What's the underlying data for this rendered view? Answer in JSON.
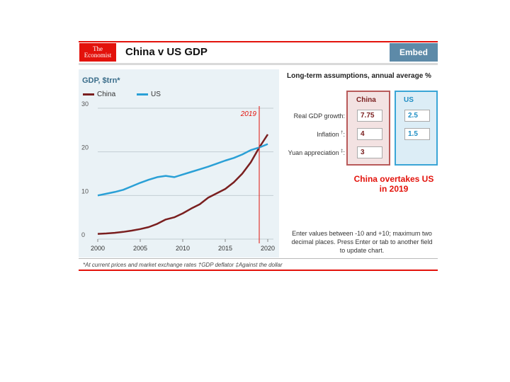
{
  "header": {
    "logo_line1": "The",
    "logo_line2": "Economist",
    "title": "China v US GDP",
    "embed_label": "Embed"
  },
  "chart_data": {
    "type": "line",
    "title": "China v US GDP",
    "ylabel": "GDP, $trn*",
    "xlabel": "",
    "xlim": [
      2000,
      2020
    ],
    "ylim": [
      0,
      30
    ],
    "xticks": [
      2000,
      2005,
      2010,
      2015,
      2020
    ],
    "yticks": [
      0,
      10,
      20,
      30
    ],
    "ytick_labels": [
      "0",
      "10",
      "20",
      "30"
    ],
    "x": [
      2000,
      2001,
      2002,
      2003,
      2004,
      2005,
      2006,
      2007,
      2008,
      2009,
      2010,
      2011,
      2012,
      2013,
      2014,
      2015,
      2016,
      2017,
      2018,
      2019,
      2020
    ],
    "series": [
      {
        "name": "China",
        "color": "#7a1f1f",
        "values": [
          1.2,
          1.3,
          1.45,
          1.65,
          1.95,
          2.3,
          2.75,
          3.5,
          4.5,
          5.0,
          5.9,
          7.0,
          8.0,
          9.5,
          10.5,
          11.5,
          13.0,
          15.0,
          17.6,
          21.0,
          24.0
        ]
      },
      {
        "name": "US",
        "color": "#2aa0d6",
        "values": [
          10.0,
          10.4,
          10.8,
          11.3,
          12.1,
          12.9,
          13.6,
          14.2,
          14.5,
          14.2,
          14.8,
          15.4,
          16.0,
          16.6,
          17.3,
          18.0,
          18.6,
          19.4,
          20.4,
          21.0,
          21.8
        ]
      }
    ],
    "annotation": {
      "year": 2019,
      "label": "2019"
    }
  },
  "panel": {
    "title": "Long-term assumptions, annual average %",
    "col_china": "China",
    "col_us": "US",
    "rows": [
      {
        "label": "Real GDP growth",
        "mark": "",
        "china": "7.75",
        "us": "2.5"
      },
      {
        "label": "Inflation",
        "mark": "†",
        "china": "4",
        "us": "1.5"
      },
      {
        "label": "Yuan appreciation",
        "mark": "‡",
        "china": "3",
        "us": ""
      }
    ],
    "overtake_line1": "China overtakes US",
    "overtake_line2": "in 2019",
    "instructions": "Enter values between -10 and +10; maximum two decimal places. Press Enter or tab to another field to update chart."
  },
  "footnote": "*At current prices and market exchange rates  †GDP deflator  ‡Against the dollar",
  "colors": {
    "accent": "#e3120b",
    "china": "#7a1f1f",
    "us": "#2aa0d6",
    "embed": "#5d8aa8"
  }
}
